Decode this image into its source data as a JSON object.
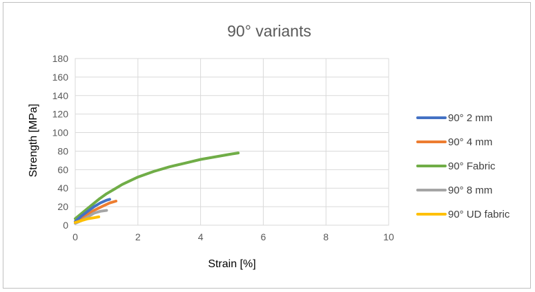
{
  "chart_data": {
    "type": "line",
    "title": "90° variants",
    "xlabel": "Strain [%]",
    "ylabel": "Strength [MPa]",
    "xlim": [
      0,
      10
    ],
    "ylim": [
      0,
      180
    ],
    "xticks": [
      0,
      2,
      4,
      6,
      8,
      10
    ],
    "yticks": [
      0,
      20,
      40,
      60,
      80,
      100,
      120,
      140,
      160,
      180
    ],
    "grid": true,
    "legend_position": "right",
    "series": [
      {
        "name": "90° 2 mm",
        "color": "#4472C4",
        "points": [
          [
            0.0,
            4
          ],
          [
            0.2,
            10
          ],
          [
            0.4,
            15
          ],
          [
            0.6,
            20
          ],
          [
            0.8,
            24
          ],
          [
            1.0,
            27
          ],
          [
            1.1,
            28
          ]
        ]
      },
      {
        "name": "90° 4 mm",
        "color": "#ED7D31",
        "points": [
          [
            0.0,
            4
          ],
          [
            0.3,
            10
          ],
          [
            0.6,
            16
          ],
          [
            0.9,
            21
          ],
          [
            1.1,
            24
          ],
          [
            1.3,
            26
          ]
        ]
      },
      {
        "name": "90° Fabric",
        "color": "#70AD47",
        "points": [
          [
            0.0,
            7
          ],
          [
            0.25,
            14
          ],
          [
            0.5,
            21
          ],
          [
            0.75,
            28
          ],
          [
            1.0,
            34
          ],
          [
            1.25,
            39
          ],
          [
            1.5,
            44
          ],
          [
            2.0,
            52
          ],
          [
            2.5,
            58
          ],
          [
            3.0,
            63
          ],
          [
            3.5,
            67
          ],
          [
            4.0,
            71
          ],
          [
            4.5,
            74
          ],
          [
            5.0,
            77
          ],
          [
            5.2,
            78
          ]
        ]
      },
      {
        "name": "90° 8 mm",
        "color": "#A5A5A5",
        "points": [
          [
            0.0,
            2
          ],
          [
            0.2,
            5
          ],
          [
            0.4,
            9
          ],
          [
            0.6,
            13
          ],
          [
            0.8,
            15
          ],
          [
            1.0,
            16
          ]
        ]
      },
      {
        "name": "90° UD fabric",
        "color": "#FFC000",
        "points": [
          [
            0.0,
            3
          ],
          [
            0.2,
            5
          ],
          [
            0.4,
            7
          ],
          [
            0.6,
            8
          ],
          [
            0.75,
            9
          ]
        ]
      }
    ]
  }
}
